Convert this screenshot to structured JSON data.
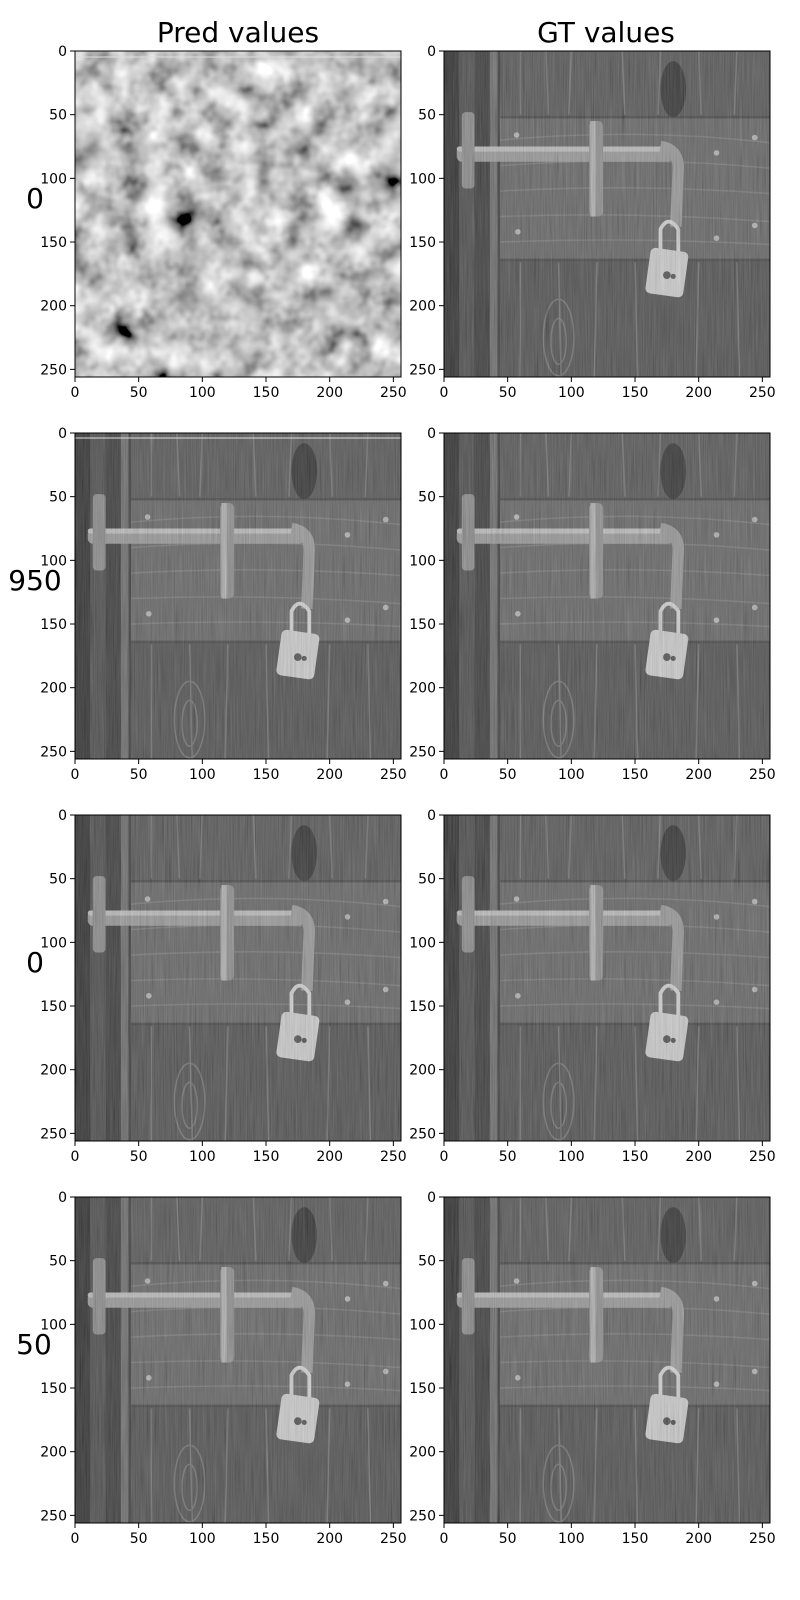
{
  "chart_data": {
    "type": "image-grid",
    "column_titles": [
      "Pred values",
      "GT values"
    ],
    "row_labels": [
      "0",
      "950",
      "0",
      "50"
    ],
    "colormap": "gray",
    "xlim": [
      0,
      256
    ],
    "ylim": [
      256,
      0
    ],
    "x_ticks": [
      0,
      50,
      100,
      150,
      200,
      250
    ],
    "y_ticks": [
      0,
      50,
      100,
      150,
      200,
      250
    ],
    "panels": [
      {
        "row": 0,
        "col": 0,
        "content": "random-noise"
      },
      {
        "row": 0,
        "col": 1,
        "content": "locked-wooden-door"
      },
      {
        "row": 1,
        "col": 0,
        "content": "locked-wooden-door"
      },
      {
        "row": 1,
        "col": 1,
        "content": "locked-wooden-door"
      },
      {
        "row": 2,
        "col": 0,
        "content": "locked-wooden-door"
      },
      {
        "row": 2,
        "col": 1,
        "content": "locked-wooden-door"
      },
      {
        "row": 3,
        "col": 0,
        "content": "locked-wooden-door"
      },
      {
        "row": 3,
        "col": 1,
        "content": "locked-wooden-door"
      }
    ]
  }
}
